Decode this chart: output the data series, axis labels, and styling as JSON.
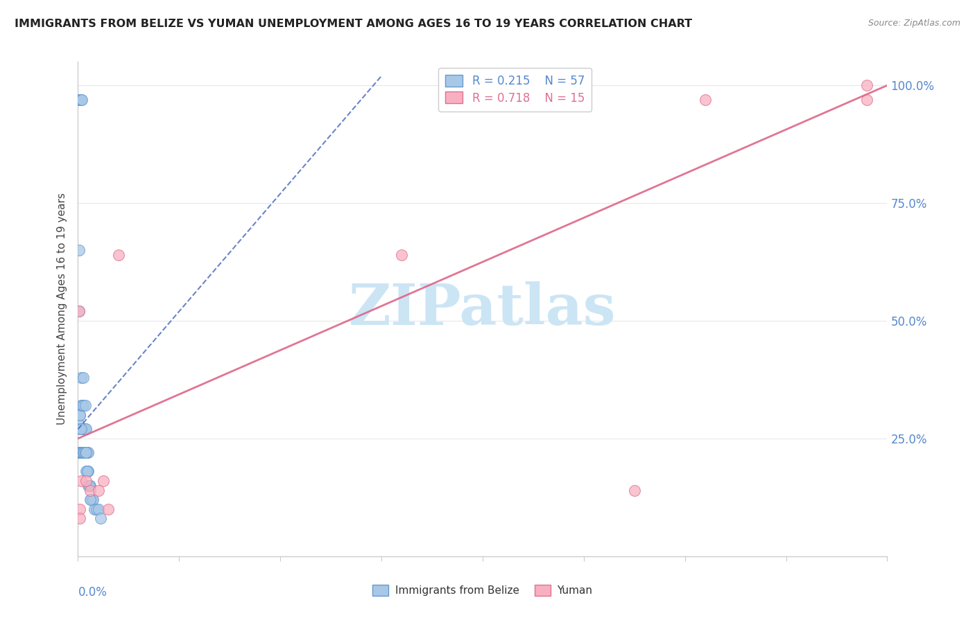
{
  "title": "IMMIGRANTS FROM BELIZE VS YUMAN UNEMPLOYMENT AMONG AGES 16 TO 19 YEARS CORRELATION CHART",
  "source": "Source: ZipAtlas.com",
  "ylabel": "Unemployment Among Ages 16 to 19 years",
  "ytick_labels": [
    "25.0%",
    "50.0%",
    "75.0%",
    "100.0%"
  ],
  "ytick_values": [
    0.25,
    0.5,
    0.75,
    1.0
  ],
  "legend_blue_r": "R = 0.215",
  "legend_blue_n": "N = 57",
  "legend_pink_r": "R = 0.718",
  "legend_pink_n": "N = 15",
  "legend_label_blue": "Immigrants from Belize",
  "legend_label_pink": "Yuman",
  "blue_scatter_color": "#a8c8e8",
  "blue_edge_color": "#6699cc",
  "pink_scatter_color": "#f8b0c0",
  "pink_edge_color": "#e07090",
  "blue_line_color": "#4466bb",
  "pink_line_color": "#dd6688",
  "watermark": "ZIPatlas",
  "watermark_color": "#cce5f5",
  "blue_points_x": [
    0.001,
    0.001,
    0.001,
    0.002,
    0.002,
    0.002,
    0.002,
    0.003,
    0.003,
    0.003,
    0.003,
    0.004,
    0.004,
    0.004,
    0.005,
    0.005,
    0.005,
    0.006,
    0.006,
    0.007,
    0.007,
    0.007,
    0.008,
    0.008,
    0.009,
    0.009,
    0.01,
    0.01,
    0.011,
    0.012,
    0.013,
    0.014,
    0.015,
    0.016,
    0.018,
    0.02,
    0.022,
    0.001,
    0.002,
    0.002,
    0.003,
    0.003,
    0.004,
    0.004,
    0.005,
    0.006,
    0.007,
    0.008,
    0.008,
    0.009,
    0.01,
    0.011,
    0.012,
    0.001,
    0.002,
    0.003,
    0.004
  ],
  "blue_points_y": [
    0.52,
    0.65,
    0.28,
    0.3,
    0.3,
    0.22,
    0.22,
    0.27,
    0.32,
    0.38,
    0.22,
    0.27,
    0.32,
    0.22,
    0.27,
    0.32,
    0.38,
    0.22,
    0.27,
    0.22,
    0.27,
    0.32,
    0.22,
    0.27,
    0.18,
    0.22,
    0.18,
    0.22,
    0.15,
    0.15,
    0.12,
    0.12,
    0.12,
    0.1,
    0.1,
    0.1,
    0.08,
    0.22,
    0.22,
    0.27,
    0.22,
    0.27,
    0.22,
    0.22,
    0.22,
    0.22,
    0.22,
    0.18,
    0.22,
    0.18,
    0.15,
    0.15,
    0.12,
    0.97,
    0.97,
    0.97,
    0.97
  ],
  "pink_points_x": [
    0.001,
    0.002,
    0.002,
    0.003,
    0.008,
    0.012,
    0.02,
    0.025,
    0.03,
    0.04,
    0.32,
    0.55,
    0.62,
    0.78,
    0.78
  ],
  "pink_points_y": [
    0.52,
    0.1,
    0.08,
    0.16,
    0.16,
    0.14,
    0.14,
    0.16,
    0.1,
    0.64,
    0.64,
    0.14,
    0.97,
    0.97,
    1.0
  ],
  "blue_trend_x": [
    0.0,
    0.3
  ],
  "blue_trend_y": [
    0.27,
    1.02
  ],
  "pink_trend_x": [
    0.0,
    0.8
  ],
  "pink_trend_y": [
    0.25,
    1.0
  ],
  "xlim": [
    0.0,
    0.8
  ],
  "ylim": [
    0.0,
    1.05
  ],
  "grid_color": "#e8e8e8",
  "spine_color": "#cccccc",
  "axis_label_color": "#5588cc",
  "title_color": "#222222",
  "source_color": "#888888"
}
